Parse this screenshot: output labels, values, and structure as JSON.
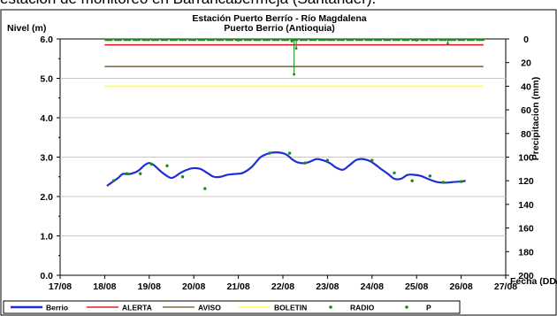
{
  "caption": "estación de monitoreo en Barrancabermeja (Santander).",
  "chart_data": {
    "type": "line",
    "title": "Estación Puerto Berrío - Río Magdalena",
    "subtitle": "Puerto Berrio (Antioquia)",
    "ylabel": "Nivel (m)",
    "y2label": "Precipitacion (mm)",
    "xlabel": "Fecha (DD/M/AA)",
    "ylim": [
      0,
      6
    ],
    "y2lim": [
      0,
      200
    ],
    "y2_inverted": true,
    "xlim": [
      0,
      10
    ],
    "x_ticks": [
      "17/08",
      "18/08",
      "19/08",
      "20/08",
      "21/08",
      "22/08",
      "23/08",
      "24/08",
      "25/08",
      "26/08",
      "27/08"
    ],
    "y_ticks": [
      "0.0",
      "1.0",
      "2.0",
      "3.0",
      "4.0",
      "5.0",
      "6.0"
    ],
    "y2_ticks": [
      "0",
      "20",
      "40",
      "60",
      "80",
      "100",
      "120",
      "140",
      "160",
      "180",
      "200"
    ],
    "grid": "horizontal",
    "legend_position": "bottom",
    "colors": {
      "berrio": "#1f2fd6",
      "alerta": "#e02020",
      "aviso": "#8a6a3a",
      "boletin": "#ffff40",
      "radio": "#1a8a1a",
      "p": "#1a8a1a"
    },
    "thresholds": [
      {
        "name": "ALERTA",
        "value": 5.85
      },
      {
        "name": "AVISO",
        "value": 5.3
      },
      {
        "name": "BOLETIN",
        "value": 4.8
      }
    ],
    "series": [
      {
        "name": "Berrio",
        "x": [
          1.05,
          1.15,
          1.3,
          1.4,
          1.5,
          1.6,
          1.75,
          1.9,
          2.0,
          2.1,
          2.3,
          2.5,
          2.7,
          2.85,
          3.0,
          3.15,
          3.3,
          3.45,
          3.6,
          3.75,
          3.9,
          4.1,
          4.3,
          4.5,
          4.7,
          4.85,
          5.0,
          5.1,
          5.2,
          5.3,
          5.4,
          5.5,
          5.6,
          5.75,
          5.9,
          6.05,
          6.2,
          6.35,
          6.5,
          6.65,
          6.8,
          6.95,
          7.05,
          7.2,
          7.35,
          7.5,
          7.65,
          7.8,
          7.95,
          8.1,
          8.25,
          8.45,
          8.65,
          8.85,
          9.0,
          9.1
        ],
        "values": [
          2.27,
          2.35,
          2.47,
          2.57,
          2.57,
          2.58,
          2.65,
          2.8,
          2.85,
          2.8,
          2.6,
          2.47,
          2.6,
          2.68,
          2.72,
          2.7,
          2.6,
          2.5,
          2.5,
          2.55,
          2.57,
          2.6,
          2.75,
          3.0,
          3.1,
          3.12,
          3.1,
          3.05,
          2.95,
          2.88,
          2.85,
          2.85,
          2.88,
          2.95,
          2.92,
          2.85,
          2.73,
          2.68,
          2.8,
          2.93,
          2.95,
          2.9,
          2.83,
          2.7,
          2.58,
          2.45,
          2.45,
          2.55,
          2.55,
          2.52,
          2.45,
          2.37,
          2.35,
          2.37,
          2.38,
          2.4
        ]
      },
      {
        "name": "RADIO",
        "x": [
          1.2,
          1.5,
          1.8,
          2.05,
          2.4,
          2.75,
          3.25,
          4.7,
          5.15,
          5.5,
          6.0,
          7.0,
          7.5,
          7.9,
          8.3,
          8.6,
          9.0
        ],
        "values": [
          2.4,
          2.58,
          2.58,
          2.82,
          2.78,
          2.5,
          2.2,
          3.1,
          3.1,
          2.85,
          2.92,
          2.92,
          2.6,
          2.4,
          2.52,
          2.36,
          2.38
        ]
      },
      {
        "name": "P",
        "x": [
          1.3,
          2.0,
          3.0,
          4.0,
          5.2,
          5.25,
          5.3,
          6.0,
          7.0,
          8.0,
          8.7,
          9.5
        ],
        "values": [
          0.5,
          0.5,
          0.5,
          1,
          2,
          30,
          8,
          0.5,
          0.5,
          1,
          4,
          0.5
        ]
      }
    ],
    "legend": [
      "Berrio",
      "ALERTA",
      "AVISO",
      "BOLETIN",
      "RADIO",
      "P"
    ]
  }
}
